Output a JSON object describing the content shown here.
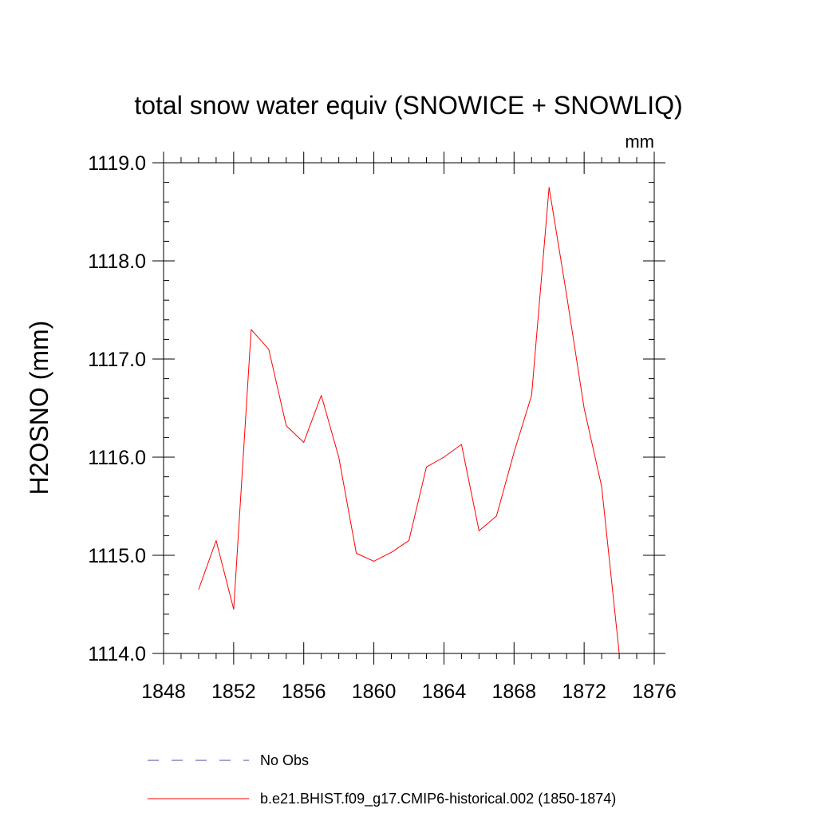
{
  "chart_data": {
    "type": "line",
    "title": "total snow water equiv (SNOWICE + SNOWLIQ)",
    "units_label": "mm",
    "xlabel": "",
    "ylabel": "H2OSNO  (mm)",
    "xlim": [
      1848,
      1876
    ],
    "ylim": [
      1114.0,
      1119.0
    ],
    "x_ticks": [
      1848,
      1852,
      1856,
      1860,
      1864,
      1868,
      1872,
      1876
    ],
    "y_ticks": [
      1114.0,
      1115.0,
      1116.0,
      1117.0,
      1118.0,
      1119.0
    ],
    "x_tick_labels": [
      "1848",
      "1852",
      "1856",
      "1860",
      "1864",
      "1868",
      "1872",
      "1876"
    ],
    "y_tick_labels": [
      "1114.0",
      "1115.0",
      "1116.0",
      "1117.0",
      "1118.0",
      "1119.0"
    ],
    "grid": false,
    "legend_position": "bottom",
    "series": [
      {
        "name": "b.e21.BHIST.f09_g17.CMIP6-historical.002 (1850-1874)",
        "color": "#ff0000",
        "dash": "solid",
        "x": [
          1850,
          1851,
          1852,
          1853,
          1854,
          1855,
          1856,
          1857,
          1858,
          1859,
          1860,
          1861,
          1862,
          1863,
          1864,
          1865,
          1866,
          1867,
          1868,
          1869,
          1870,
          1871,
          1872,
          1873,
          1874
        ],
        "values": [
          1114.65,
          1115.15,
          1114.45,
          1117.3,
          1117.1,
          1116.32,
          1116.15,
          1116.63,
          1116.0,
          1115.02,
          1114.94,
          1115.03,
          1115.15,
          1115.9,
          1116.0,
          1116.13,
          1115.25,
          1115.4,
          1116.05,
          1116.63,
          1118.75,
          1117.65,
          1116.5,
          1115.7,
          1114.0
        ]
      }
    ],
    "legend": [
      {
        "label": "No Obs",
        "color": "#4b49a8",
        "dash": "dashed"
      },
      {
        "label": "b.e21.BHIST.f09_g17.CMIP6-historical.002 (1850-1874)",
        "color": "#ff0000",
        "dash": "solid"
      }
    ]
  }
}
